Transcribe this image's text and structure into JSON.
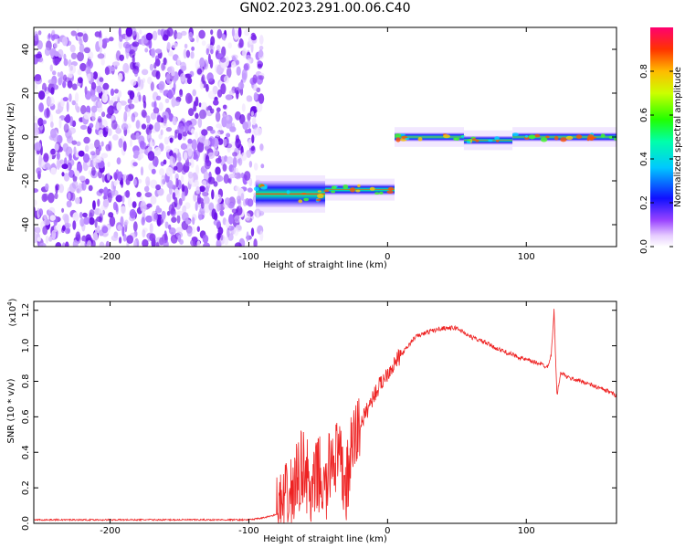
{
  "title": "GN02.2023.291.00.06.C40",
  "chart_data": [
    {
      "type": "heatmap",
      "xlabel": "Height of straight line (km)",
      "ylabel": "Frequency (Hz)",
      "xlim": [
        -255,
        165
      ],
      "ylim": [
        -50,
        50
      ],
      "xticks": [
        -200,
        -100,
        0,
        100
      ],
      "yticks": [
        -40,
        -20,
        0,
        20,
        40
      ],
      "colorbar": {
        "label": "Normalized spectral amplitude",
        "range": [
          0,
          1
        ],
        "ticks": [
          "0.0",
          "0.2",
          "0.4",
          "0.6",
          "0.8"
        ]
      },
      "regions": [
        {
          "kind": "noise",
          "x": [
            -255,
            -90
          ],
          "y": [
            -50,
            48
          ],
          "amplitude": 0.2
        },
        {
          "kind": "band",
          "x": [
            -95,
            -45
          ],
          "center": -26,
          "width": 12,
          "amplitude": 0.4
        },
        {
          "kind": "band",
          "x": [
            -45,
            5
          ],
          "center": -24,
          "width": 5,
          "amplitude": 0.6
        },
        {
          "kind": "band",
          "x": [
            5,
            55
          ],
          "center": 0,
          "width": 4,
          "amplitude": 0.8
        },
        {
          "kind": "band",
          "x": [
            55,
            90
          ],
          "center": -1.5,
          "width": 4,
          "amplitude": 0.85
        },
        {
          "kind": "band",
          "x": [
            90,
            165
          ],
          "center": 0,
          "width": 4,
          "amplitude": 0.75
        }
      ]
    },
    {
      "type": "line",
      "xlabel": "Height of straight line (km)",
      "ylabel": "SNR (10 * v/v)",
      "yscale_label": "(x10",
      "yscale_exp": "4",
      "yscale_close": ")",
      "xlim": [
        -255,
        165
      ],
      "ylim": [
        0,
        1.25
      ],
      "xticks": [
        -200,
        -100,
        0,
        100
      ],
      "yticks": [
        "0.0",
        "0.2",
        "0.4",
        "0.6",
        "0.8",
        "1.0",
        "1.2"
      ],
      "color": "#ee2222",
      "series": [
        {
          "x": [
            -255,
            -150,
            -100,
            -90,
            -80,
            -70,
            -60,
            -55,
            -50,
            -45,
            -40,
            -35,
            -30,
            -25,
            -20,
            -10,
            0,
            10,
            20,
            30,
            40,
            50,
            60,
            70,
            80,
            90,
            100,
            110,
            115,
            118,
            120,
            122,
            125,
            130,
            140,
            150,
            160,
            165
          ],
          "y": [
            0.02,
            0.02,
            0.02,
            0.03,
            0.05,
            0.15,
            0.35,
            0.12,
            0.3,
            0.15,
            0.4,
            0.35,
            0.2,
            0.45,
            0.55,
            0.72,
            0.85,
            0.95,
            1.05,
            1.08,
            1.1,
            1.1,
            1.05,
            1.02,
            0.98,
            0.95,
            0.92,
            0.9,
            0.88,
            0.95,
            1.2,
            0.72,
            0.85,
            0.82,
            0.8,
            0.77,
            0.74,
            0.72
          ]
        }
      ]
    }
  ]
}
